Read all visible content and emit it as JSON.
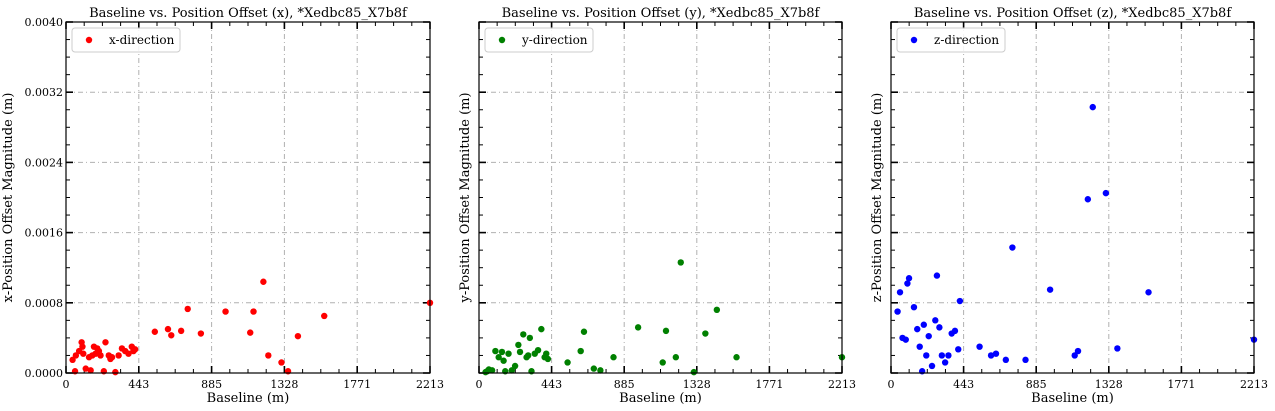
{
  "figure": {
    "background": "#ffffff",
    "grid": true,
    "legend_placement": "top-left"
  },
  "chart_data": [
    {
      "type": "scatter",
      "title": "Baseline vs. Position Offset (x), *Xedbc85_X7b8f",
      "xlabel": "Baseline (m)",
      "ylabel": "x-Position Offset Magnitude (m)",
      "xlim": [
        0,
        2213
      ],
      "ylim": [
        0,
        0.004
      ],
      "xticks": [
        "0",
        "443",
        "885",
        "1328",
        "1771",
        "2213"
      ],
      "yticks": [
        "0.0000",
        "0.0008",
        "0.0016",
        "0.0024",
        "0.0032",
        "0.0040"
      ],
      "series": [
        {
          "name": "x-direction",
          "color": "#ff0000",
          "x": [
            40,
            55,
            60,
            80,
            95,
            100,
            105,
            120,
            140,
            150,
            160,
            170,
            180,
            190,
            200,
            210,
            230,
            240,
            260,
            270,
            280,
            300,
            320,
            340,
            360,
            380,
            400,
            410,
            420,
            540,
            620,
            640,
            700,
            740,
            820,
            970,
            1120,
            1140,
            1200,
            1230,
            1310,
            1350,
            1410,
            1570,
            2213
          ],
          "y": [
            0.00015,
            2e-05,
            0.0002,
            0.00025,
            0.00035,
            0.0003,
            0.00022,
            5e-05,
            0.00018,
            3e-05,
            0.0002,
            0.0003,
            0.00022,
            0.00028,
            0.00025,
            0.0002,
            2e-05,
            0.00035,
            0.0002,
            0.00016,
            0.00018,
            1e-05,
            0.0002,
            0.00028,
            0.00025,
            0.00022,
            0.0003,
            0.00025,
            0.00027,
            0.00047,
            0.0005,
            0.00043,
            0.00048,
            0.00073,
            0.00045,
            0.0007,
            0.00046,
            0.0007,
            0.00104,
            0.0002,
            0.00012,
            2e-05,
            0.00042,
            0.00065,
            0.0008
          ]
        }
      ]
    },
    {
      "type": "scatter",
      "title": "Baseline vs. Position Offset (y), *Xedbc85_X7b8f",
      "xlabel": "Baseline (m)",
      "ylabel": "y-Position Offset Magnitude (m)",
      "xlim": [
        0,
        2213
      ],
      "ylim": [
        0,
        0.004
      ],
      "xticks": [
        "0",
        "443",
        "885",
        "1328",
        "1771",
        "2213"
      ],
      "yticks": [
        "0.0000",
        "0.0008",
        "0.0016",
        "0.0024",
        "0.0032",
        "0.0040"
      ],
      "series": [
        {
          "name": "y-direction",
          "color": "#008000",
          "x": [
            40,
            50,
            60,
            80,
            100,
            120,
            140,
            150,
            160,
            180,
            200,
            220,
            240,
            250,
            270,
            290,
            300,
            310,
            320,
            340,
            360,
            380,
            400,
            410,
            420,
            540,
            620,
            640,
            700,
            740,
            820,
            970,
            1120,
            1140,
            1200,
            1230,
            1310,
            1380,
            1450,
            1570,
            2213
          ],
          "y": [
            1e-05,
            2e-05,
            4e-05,
            3e-05,
            0.00025,
            0.00018,
            0.00024,
            0.00014,
            2e-05,
            0.00022,
            3e-05,
            8e-05,
            0.00032,
            0.00024,
            0.00044,
            0.00018,
            0.0002,
            0.0004,
            2e-05,
            0.00022,
            0.00026,
            0.0005,
            0.00018,
            0.00022,
            0.00016,
            0.00012,
            0.00025,
            0.00047,
            5e-05,
            3e-05,
            0.00018,
            0.00052,
            0.00012,
            0.00048,
            0.00018,
            0.00126,
            1e-05,
            0.00045,
            0.00072,
            0.00018,
            0.00018
          ]
        }
      ]
    },
    {
      "type": "scatter",
      "title": "Baseline vs. Position Offset (z), *Xedbc85_X7b8f",
      "xlabel": "Baseline (m)",
      "ylabel": "z-Position Offset Magnitude (m)",
      "xlim": [
        0,
        2213
      ],
      "ylim": [
        0,
        0.004
      ],
      "xticks": [
        "0",
        "443",
        "885",
        "1328",
        "1771",
        "2213"
      ],
      "yticks": [
        "0.0000",
        "0.0008",
        "0.0016",
        "0.0024",
        "0.0032",
        "0.0040"
      ],
      "series": [
        {
          "name": "z-direction",
          "color": "#0000ff",
          "x": [
            40,
            55,
            70,
            90,
            100,
            110,
            140,
            160,
            175,
            190,
            200,
            215,
            230,
            250,
            270,
            280,
            295,
            310,
            330,
            350,
            370,
            390,
            410,
            420,
            540,
            610,
            640,
            700,
            740,
            820,
            970,
            1120,
            1140,
            1200,
            1230,
            1310,
            1380,
            1570,
            2213
          ],
          "y": [
            0.0007,
            0.00092,
            0.0004,
            0.00038,
            0.00102,
            0.00108,
            0.00075,
            0.0005,
            0.0003,
            2e-05,
            0.00055,
            0.0002,
            0.00042,
            8e-05,
            0.0006,
            0.00111,
            0.00052,
            0.0002,
            0.00012,
            0.0002,
            0.00045,
            0.00048,
            0.00027,
            0.00082,
            0.0003,
            0.0002,
            0.00022,
            0.00015,
            0.00143,
            0.00015,
            0.00095,
            0.0002,
            0.00025,
            0.00198,
            0.00303,
            0.00205,
            0.00028,
            0.00092,
            0.00038
          ]
        }
      ]
    }
  ]
}
